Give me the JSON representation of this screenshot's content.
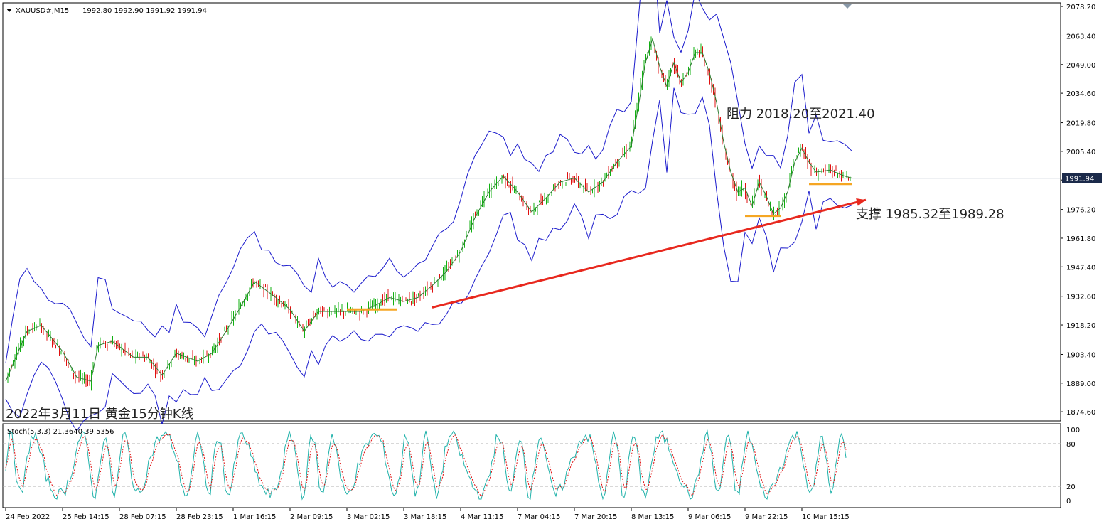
{
  "header": {
    "symbol": "XAUUSD#,M15",
    "ohlc": "1992.80 1992.90 1991.92 1991.94"
  },
  "colors": {
    "bull": "#12b012",
    "bear": "#e01010",
    "band": "#1a1acc",
    "trend": "#e8281e",
    "support_mark": "#f5a623",
    "stoch_main": "#20b2aa",
    "stoch_signal": "#e01010"
  },
  "chart_data": [
    {
      "type": "candlestick",
      "title": "2022年3月11日 黄金15分钟K线",
      "y_ticks": [
        1874.6,
        1889.0,
        1903.4,
        1918.2,
        1932.6,
        1947.4,
        1961.8,
        1976.2,
        1991.0,
        2005.4,
        2019.8,
        2034.6,
        2049.0,
        2063.4,
        2078.2
      ],
      "ylim": [
        1870.0,
        2080.0
      ],
      "last_price": 1991.94,
      "last_price_label": "1991.94",
      "x_tick_labels": [
        "24 Feb 2022",
        "25 Feb 14:15",
        "28 Feb 07:15",
        "28 Feb 23:15",
        "1 Mar 16:15",
        "2 Mar 09:15",
        "3 Mar 02:15",
        "3 Mar 18:15",
        "4 Mar 11:15",
        "7 Mar 04:15",
        "7 Mar 20:15",
        "8 Mar 13:15",
        "9 Mar 06:15",
        "9 Mar 22:15",
        "10 Mar 15:15"
      ],
      "price_path": [
        [
          0,
          1890
        ],
        [
          3,
          1915
        ],
        [
          5,
          1918
        ],
        [
          8,
          1905
        ],
        [
          10,
          1892
        ],
        [
          12,
          1890
        ],
        [
          13,
          1908
        ],
        [
          15,
          1910
        ],
        [
          18,
          1902
        ],
        [
          20,
          1902
        ],
        [
          22,
          1893
        ],
        [
          24,
          1904
        ],
        [
          27,
          1900
        ],
        [
          29,
          1904
        ],
        [
          31,
          1915
        ],
        [
          33,
          1927
        ],
        [
          35,
          1940
        ],
        [
          38,
          1932
        ],
        [
          40,
          1926
        ],
        [
          42,
          1915
        ],
        [
          44,
          1925
        ],
        [
          47,
          1925
        ],
        [
          50,
          1925
        ],
        [
          52,
          1928
        ],
        [
          54,
          1932
        ],
        [
          56,
          1930
        ],
        [
          58,
          1932
        ],
        [
          60,
          1938
        ],
        [
          62,
          1945
        ],
        [
          64,
          1955
        ],
        [
          66,
          1972
        ],
        [
          68,
          1985
        ],
        [
          70,
          1993
        ],
        [
          72,
          1985
        ],
        [
          74,
          1975
        ],
        [
          76,
          1982
        ],
        [
          78,
          1990
        ],
        [
          80,
          1992
        ],
        [
          82,
          1985
        ],
        [
          84,
          1990
        ],
        [
          86,
          2000
        ],
        [
          88,
          2008
        ],
        [
          89,
          2028
        ],
        [
          90,
          2050
        ],
        [
          91,
          2062
        ],
        [
          92,
          2048
        ],
        [
          93,
          2038
        ],
        [
          94,
          2050
        ],
        [
          95,
          2040
        ],
        [
          96,
          2045
        ],
        [
          97,
          2055
        ],
        [
          98,
          2055
        ],
        [
          99,
          2045
        ],
        [
          100,
          2030
        ],
        [
          101,
          2010
        ],
        [
          102,
          1995
        ],
        [
          103,
          1985
        ],
        [
          104,
          1987
        ],
        [
          105,
          1978
        ],
        [
          106,
          1990
        ],
        [
          107,
          1983
        ],
        [
          108,
          1974
        ],
        [
          109,
          1977
        ],
        [
          110,
          1985
        ],
        [
          111,
          2000
        ],
        [
          112,
          2007
        ],
        [
          113,
          2000
        ],
        [
          114,
          1995
        ],
        [
          116,
          1996
        ],
        [
          118,
          1993
        ],
        [
          119,
          1992
        ]
      ],
      "resistance_label": "阻力 2018.20至2021.40",
      "support_label": "支撑 1985.32至1989.28",
      "trend_line": {
        "from": [
          60,
          1927
        ],
        "to": [
          121,
          1981
        ]
      },
      "support_marks": [
        {
          "from": [
            48,
            1926
          ],
          "to": [
            55,
            1926
          ]
        },
        {
          "from": [
            104,
            1973
          ],
          "to": [
            109,
            1973
          ]
        },
        {
          "from": [
            113,
            1989
          ],
          "to": [
            119,
            1989
          ]
        }
      ]
    },
    {
      "type": "line",
      "title": "Stoch(5,3,3) 21.3640 39.5356",
      "y_ticks": [
        0,
        20,
        80,
        100
      ],
      "ylim": [
        0,
        100
      ],
      "levels": [
        20,
        80
      ],
      "last_main": 21.364,
      "last_signal": 39.5356
    }
  ]
}
